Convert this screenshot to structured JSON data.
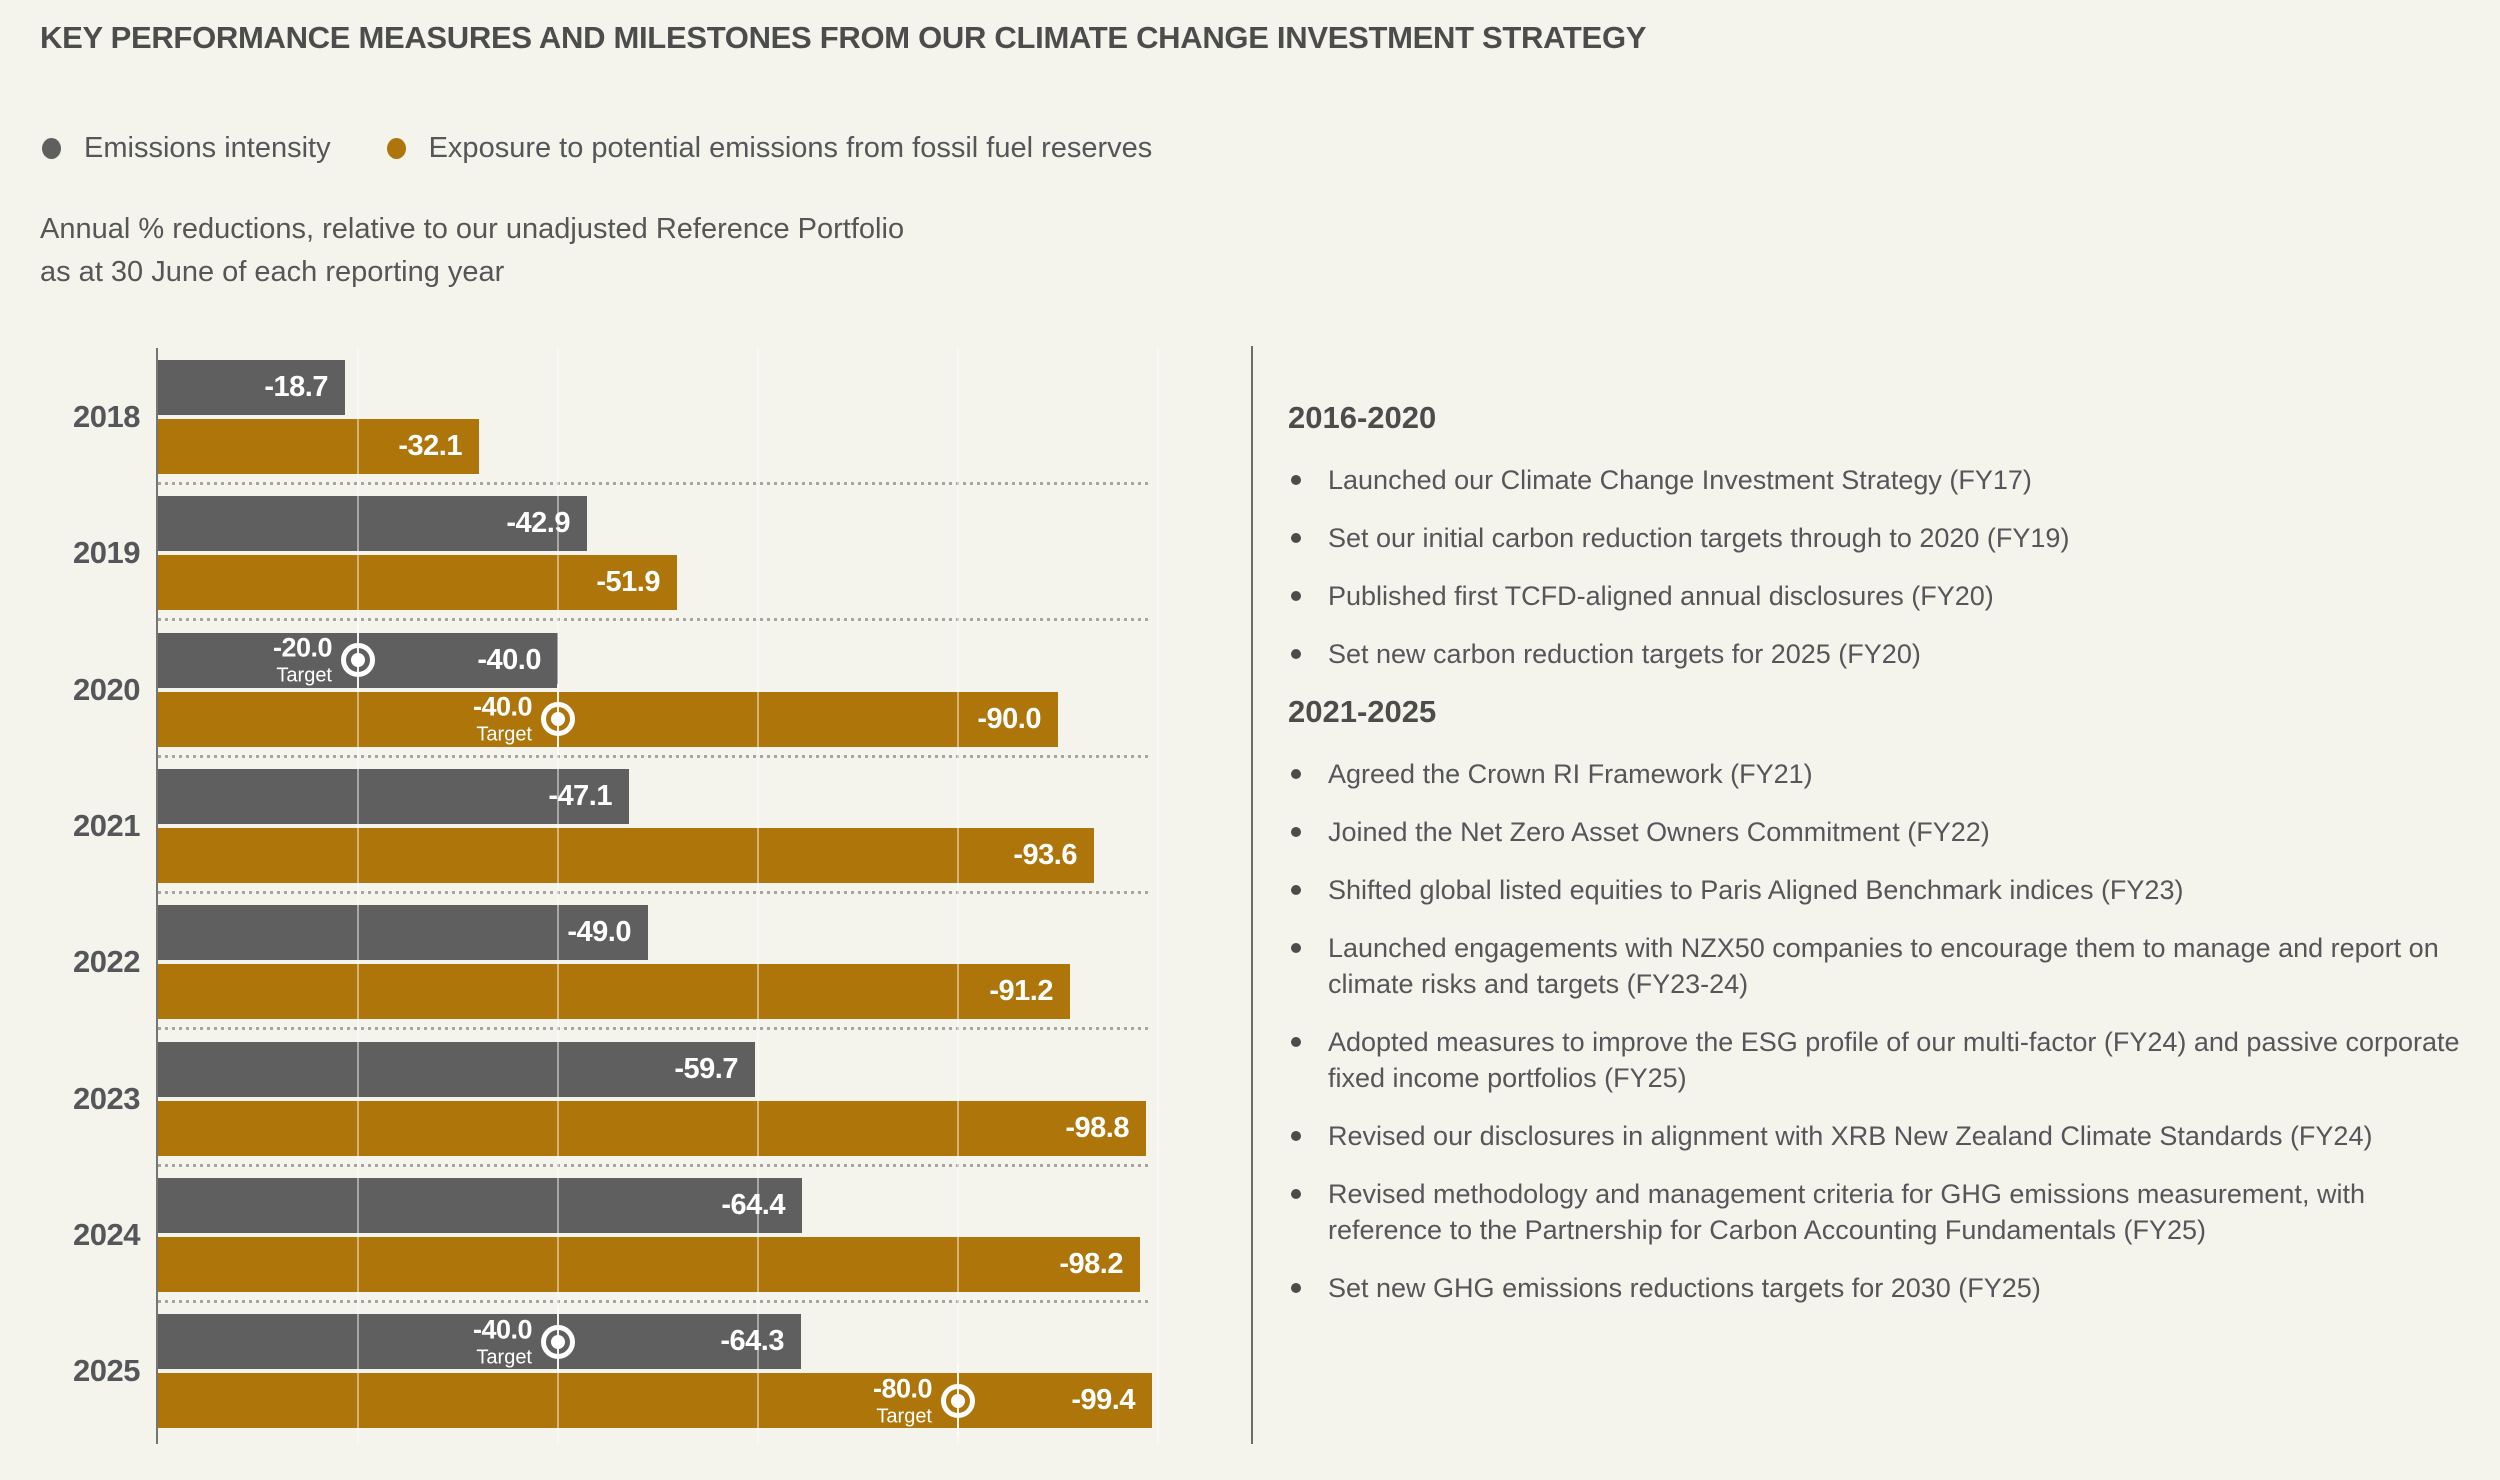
{
  "title": "KEY PERFORMANCE MEASURES AND MILESTONES FROM OUR CLIMATE CHANGE INVESTMENT STRATEGY",
  "subtitle_line1": "Annual % reductions, relative to our unadjusted Reference Portfolio",
  "subtitle_line2": "as at 30 June of each reporting year",
  "legend": [
    {
      "label": "Emissions intensity",
      "color": "#5f5f5f"
    },
    {
      "label": "Exposure to potential emissions from fossil fuel reserves",
      "color": "#ae760a"
    }
  ],
  "colors": {
    "background": "#f4f4ec",
    "bar_gray": "#5f5f5f",
    "bar_gold": "#ae760a",
    "heading_text": "#4c4c4c",
    "body_text": "#56565a",
    "axis": "#767670",
    "dotted_separator": "#a6a69e",
    "gridline": "rgba(255,255,255,0.45)",
    "divider": "#6d6d66",
    "value_label_text": "#ffffff"
  },
  "chart_data": {
    "type": "bar",
    "orientation": "horizontal",
    "title": "KEY PERFORMANCE MEASURES AND MILESTONES FROM OUR CLIMATE CHANGE INVESTMENT STRATEGY",
    "subtitle": "Annual % reductions, relative to our unadjusted Reference Portfolio as at 30 June of each reporting year",
    "categories": [
      "2018",
      "2019",
      "2020",
      "2021",
      "2022",
      "2023",
      "2024",
      "2025"
    ],
    "series": [
      {
        "name": "Emissions intensity",
        "color": "#5f5f5f",
        "values": [
          -18.7,
          -42.9,
          -40.0,
          -47.1,
          -49.0,
          -59.7,
          -64.4,
          -64.3
        ],
        "targets": [
          null,
          null,
          -20.0,
          null,
          null,
          null,
          null,
          -40.0
        ]
      },
      {
        "name": "Exposure to potential emissions from fossil fuel reserves",
        "color": "#ae760a",
        "values": [
          -32.1,
          -51.9,
          -90.0,
          -93.6,
          -91.2,
          -98.8,
          -98.2,
          -99.4
        ],
        "targets": [
          null,
          null,
          -40.0,
          null,
          null,
          null,
          null,
          -80.0
        ]
      }
    ],
    "target_label": "Target",
    "xlim": [
      0,
      -100
    ],
    "gridlines": [
      -20,
      -40,
      -60,
      -80,
      -100
    ],
    "grid": true,
    "legend_position": "top-left",
    "value_label_format": "one-decimal"
  },
  "milestones": {
    "sections": [
      {
        "heading": "2016-2020",
        "items": [
          "Launched our Climate Change Investment Strategy (FY17)",
          "Set our initial carbon reduction targets through to 2020 (FY19)",
          "Published first TCFD-aligned annual disclosures (FY20)",
          "Set new carbon reduction targets for 2025 (FY20)"
        ]
      },
      {
        "heading": "2021-2025",
        "items": [
          "Agreed the Crown RI Framework (FY21)",
          "Joined the Net Zero Asset Owners Commitment (FY22)",
          "Shifted global listed equities to Paris Aligned Benchmark indices (FY23)",
          "Launched engagements with NZX50 companies to encourage them to manage and report on climate risks and targets (FY23-24)",
          "Adopted measures to improve the ESG profile of our multi-factor (FY24) and passive corporate fixed income portfolios (FY25)",
          "Revised our disclosures in alignment with XRB New Zealand Climate Standards (FY24)",
          "Revised methodology and management criteria for GHG emissions measurement, with reference to the Partnership for Carbon Accounting Fundamentals (FY25)",
          "Set new GHG emissions reductions targets for 2030 (FY25)"
        ]
      }
    ]
  }
}
